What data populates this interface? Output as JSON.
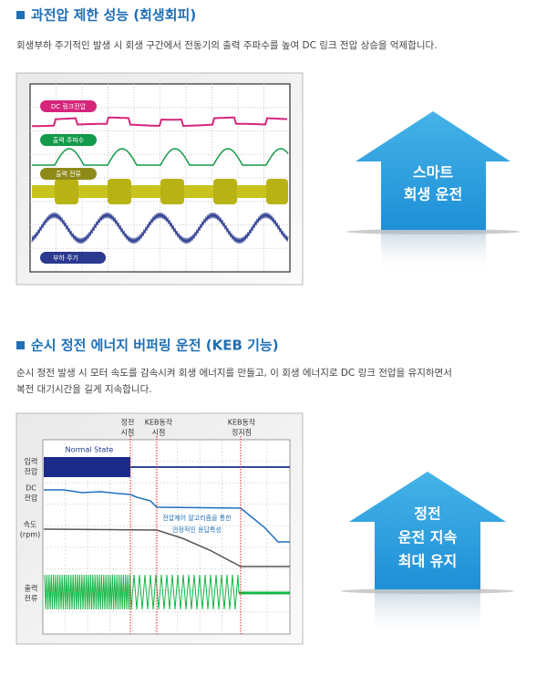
{
  "sections": [
    {
      "title": "과전압 제한 성능 (회생회피)",
      "description": [
        "회생부하 주기적인 발생 시 회생 구간에서 전동기의 출력 주파수를 높여 DC 링크 전압 상승을 억제합니다."
      ],
      "figure": {
        "labels": [
          "DC 링크전압",
          "출력 주파수",
          "출력 전류",
          "부하 주기"
        ]
      },
      "arrow": [
        "스마트",
        "회생 운전"
      ]
    },
    {
      "title": "순시 정전 에너지 버퍼링 운전 (KEB 기능)",
      "description": [
        "순시 정전 발생 시 모터 속도를 감속시켜 회생 에너지를 만들고, 이 회생 에너지로 DC 링크 전압을 유지하면서",
        "복전 대기시간을 길게 지속합니다."
      ],
      "figure": {
        "events": [
          [
            "정전",
            "시점"
          ],
          [
            "KEB동작",
            "시점"
          ],
          [
            "KEB동작",
            "정지점"
          ]
        ],
        "signals": [
          [
            "입력",
            "전압"
          ],
          [
            "DC",
            "전압"
          ],
          [
            "속도",
            "(rpm)"
          ],
          [
            "출력",
            "전류"
          ]
        ],
        "state": "Normal State",
        "note": [
          "전압제어 알고리즘을 통한",
          "안정적인 응답특성"
        ]
      },
      "arrow": [
        "정전",
        "운전 지속",
        "최대 유지"
      ]
    }
  ]
}
